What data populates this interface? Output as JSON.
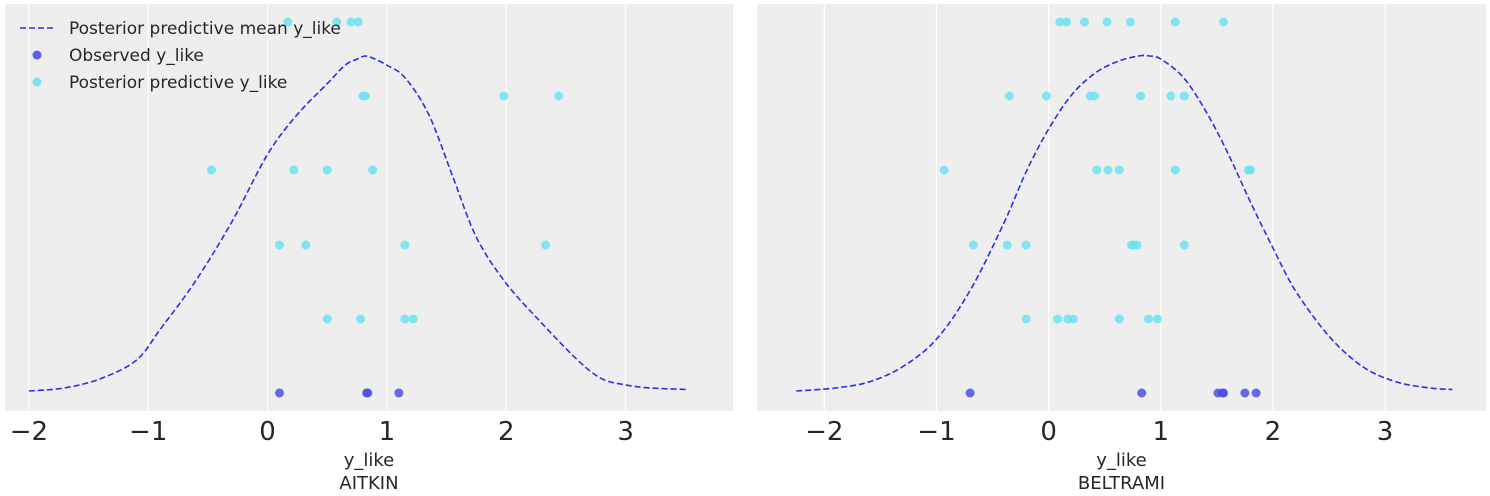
{
  "chart_data": [
    {
      "type": "scatter",
      "title": "",
      "xlabel": "y_like",
      "xlabel2": "AITKIN",
      "xlim": [
        -2.2,
        3.9
      ],
      "xticks": [
        -2,
        -1,
        0,
        1,
        2,
        3
      ],
      "tick_labels": [
        "−2",
        "−1",
        "0",
        "1",
        "2",
        "3"
      ],
      "grid": true,
      "legend": {
        "position": "top-left",
        "entries": [
          {
            "label": "Posterior predictive mean y_like",
            "marker": "dashed-line",
            "color": "#2a2eec"
          },
          {
            "label": "Observed y_like",
            "marker": "dot",
            "color": "#4c4ee6"
          },
          {
            "label": "Posterior predictive y_like",
            "marker": "dot",
            "color": "#6fe2f2"
          }
        ]
      },
      "mean_curve": {
        "name": "Posterior predictive mean y_like",
        "x": [
          -2.0,
          -1.7,
          -1.4,
          -1.1,
          -0.9,
          -0.6,
          -0.3,
          0.0,
          0.25,
          0.5,
          0.65,
          0.75,
          0.82,
          0.9,
          1.0,
          1.15,
          1.35,
          1.55,
          1.75,
          2.0,
          2.3,
          2.6,
          2.8,
          3.0,
          3.2,
          3.52
        ],
        "y": [
          0.0,
          0.01,
          0.04,
          0.1,
          0.2,
          0.36,
          0.55,
          0.77,
          0.9,
          1.0,
          1.06,
          1.08,
          1.09,
          1.08,
          1.06,
          1.02,
          0.9,
          0.7,
          0.5,
          0.35,
          0.22,
          0.1,
          0.04,
          0.02,
          0.01,
          0.005
        ],
        "color": "#2a2eec"
      },
      "observed": {
        "name": "Observed y_like",
        "x": [
          0.1,
          0.83,
          0.84,
          1.1
        ],
        "color": "#4c4ee6"
      },
      "predictive": {
        "name": "Posterior predictive y_like",
        "rows": [
          [
            0.17,
            0.58,
            0.7,
            0.76
          ],
          [
            0.8,
            0.82,
            1.98,
            2.44
          ],
          [
            -0.47,
            0.22,
            0.5,
            0.88
          ],
          [
            0.1,
            0.32,
            1.15,
            2.33
          ],
          [
            0.5,
            0.78,
            1.15,
            1.22
          ]
        ],
        "color": "#6fe2f2"
      }
    },
    {
      "type": "scatter",
      "title": "",
      "xlabel": "y_like",
      "xlabel2": "BELTRAMI",
      "xlim": [
        -2.6,
        3.9
      ],
      "xticks": [
        -2,
        -1,
        0,
        1,
        2,
        3
      ],
      "tick_labels": [
        "−2",
        "−1",
        "0",
        "1",
        "2",
        "3"
      ],
      "grid": true,
      "mean_curve": {
        "name": "Posterior predictive mean y_like",
        "x": [
          -2.25,
          -1.9,
          -1.6,
          -1.3,
          -1.0,
          -0.7,
          -0.4,
          -0.2,
          0.0,
          0.2,
          0.4,
          0.6,
          0.8,
          0.9,
          1.0,
          1.2,
          1.4,
          1.6,
          1.8,
          2.0,
          2.2,
          2.5,
          2.8,
          3.1,
          3.4,
          3.6
        ],
        "y": [
          0.0,
          0.01,
          0.03,
          0.08,
          0.17,
          0.33,
          0.55,
          0.72,
          0.86,
          0.97,
          1.04,
          1.08,
          1.1,
          1.1,
          1.09,
          1.03,
          0.92,
          0.78,
          0.62,
          0.47,
          0.33,
          0.18,
          0.08,
          0.03,
          0.01,
          0.005
        ],
        "color": "#2a2eec"
      },
      "observed": {
        "name": "Observed y_like",
        "x": [
          -0.7,
          0.83,
          1.51,
          1.55,
          1.56,
          1.75,
          1.85
        ],
        "color": "#4c4ee6"
      },
      "predictive": {
        "name": "Posterior predictive y_like",
        "rows": [
          [
            0.1,
            0.16,
            0.32,
            0.52,
            0.73,
            1.13,
            1.56
          ],
          [
            -0.35,
            -0.02,
            0.37,
            0.41,
            0.82,
            1.09,
            1.21
          ],
          [
            -0.93,
            0.43,
            0.53,
            0.63,
            1.13,
            1.78,
            1.8
          ],
          [
            -0.67,
            -0.37,
            -0.2,
            0.74,
            0.76,
            0.79,
            1.21
          ],
          [
            -0.2,
            0.08,
            0.17,
            0.22,
            0.63,
            0.89,
            0.97
          ]
        ],
        "color": "#6fe2f2"
      }
    }
  ]
}
